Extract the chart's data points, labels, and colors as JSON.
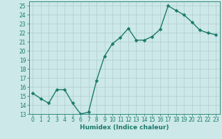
{
  "x": [
    0,
    1,
    2,
    3,
    4,
    5,
    6,
    7,
    8,
    9,
    10,
    11,
    12,
    13,
    14,
    15,
    16,
    17,
    18,
    19,
    20,
    21,
    22,
    23
  ],
  "y": [
    15.3,
    14.7,
    14.2,
    15.7,
    15.7,
    14.2,
    13.0,
    13.2,
    16.7,
    19.4,
    20.8,
    21.5,
    22.5,
    21.2,
    21.2,
    21.6,
    22.4,
    25.0,
    24.5,
    24.0,
    23.2,
    22.3,
    22.0,
    21.8
  ],
  "xlabel": "Humidex (Indice chaleur)",
  "line_color": "#1a7a6a",
  "marker_color": "#1a7a6a",
  "bg_color": "#cce8e8",
  "grid_color": "#b0cccc",
  "xlim": [
    -0.5,
    23.5
  ],
  "ylim": [
    13,
    25.5
  ],
  "yticks": [
    13,
    14,
    15,
    16,
    17,
    18,
    19,
    20,
    21,
    22,
    23,
    24,
    25
  ],
  "xticks": [
    0,
    1,
    2,
    3,
    4,
    5,
    6,
    7,
    8,
    9,
    10,
    11,
    12,
    13,
    14,
    15,
    16,
    17,
    18,
    19,
    20,
    21,
    22,
    23
  ],
  "xtick_labels": [
    "0",
    "1",
    "2",
    "3",
    "4",
    "5",
    "6",
    "7",
    "8",
    "9",
    "10",
    "11",
    "12",
    "13",
    "14",
    "15",
    "16",
    "17",
    "18",
    "19",
    "20",
    "21",
    "22",
    "23"
  ],
  "label_fontsize": 6.5,
  "tick_fontsize": 5.5,
  "linewidth": 1.0,
  "markersize": 2.5
}
